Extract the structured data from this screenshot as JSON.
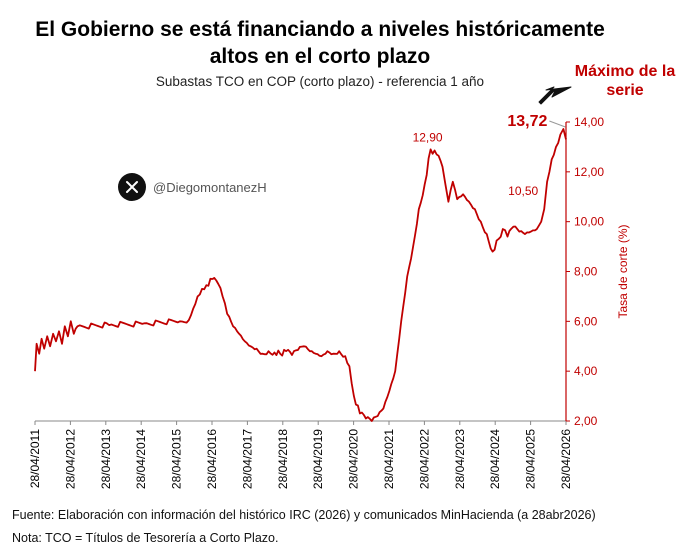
{
  "title_line1": "El Gobierno se está financiando a niveles históricamente",
  "title_line2": "altos en el corto plazo",
  "subtitle": "Subastas TCO en COP (corto plazo) - referencia 1 año",
  "annotation_line1": "Máximo de la",
  "annotation_line2": "serie",
  "handle": "@DiegomontanezH",
  "handle_icon": "x-logo-icon",
  "source": "Fuente: Elaboración con información del histórico IRC (2026) y comunicados MinHacienda (a 28abr2026)",
  "note": "Nota: TCO = Títulos de Tesorería a Corto Plazo.",
  "colors": {
    "series": "#c00000",
    "axis": "#c00000",
    "text": "#000000"
  },
  "chart_data": {
    "type": "line",
    "ylabel": "Tasa de corte (%)",
    "ylim": [
      2,
      14
    ],
    "y_ticks": [
      "2,00",
      "4,00",
      "6,00",
      "8,00",
      "10,00",
      "12,00",
      "14,00"
    ],
    "y_axis_position": "right",
    "x_range": [
      "2011-04-28",
      "2026-04-28"
    ],
    "x_tick_labels": [
      "28/04/2011",
      "28/04/2012",
      "28/04/2013",
      "28/04/2014",
      "28/04/2015",
      "28/04/2016",
      "28/04/2017",
      "28/04/2018",
      "28/04/2019",
      "28/04/2020",
      "28/04/2021",
      "28/04/2022",
      "28/04/2023",
      "28/04/2024",
      "28/04/2025",
      "28/04/2026"
    ],
    "grid": false,
    "legend": "none",
    "series": [
      {
        "x": [
          "2011-04-28",
          "2011-05-15",
          "2011-06-10",
          "2011-07-05",
          "2011-08-01",
          "2011-09-01",
          "2011-10-01",
          "2011-11-01",
          "2011-12-01",
          "2012-01-01",
          "2012-02-01",
          "2012-03-01",
          "2012-04-01",
          "2012-05-01",
          "2012-06-01",
          "2012-07-10",
          "2013-06-01",
          "2014-06-01",
          "2015-06-01",
          "2015-09-01",
          "2015-10-15",
          "2015-12-01",
          "2016-01-15",
          "2016-03-01",
          "2016-05-01",
          "2016-07-01",
          "2016-08-15",
          "2016-10-01",
          "2016-12-01",
          "2017-02-01",
          "2017-04-01",
          "2017-06-01",
          "2017-08-01",
          "2017-10-01",
          "2017-12-01",
          "2018-02-01",
          "2018-04-01",
          "2018-06-01",
          "2018-08-01",
          "2018-10-01",
          "2018-12-01",
          "2019-02-01",
          "2019-04-01",
          "2019-06-01",
          "2019-08-01",
          "2019-10-01",
          "2019-12-01",
          "2020-02-01",
          "2020-03-15",
          "2020-05-01",
          "2020-07-01",
          "2020-09-01",
          "2020-11-01",
          "2021-01-01",
          "2021-03-01",
          "2021-05-01",
          "2021-07-01",
          "2021-09-01",
          "2021-11-01",
          "2022-01-01",
          "2022-03-01",
          "2022-05-01",
          "2022-07-01",
          "2022-09-01",
          "2022-11-01",
          "2022-12-01",
          "2023-01-01",
          "2023-02-15",
          "2023-04-01",
          "2023-06-01",
          "2023-08-01",
          "2023-10-01",
          "2023-12-01",
          "2024-02-01",
          "2024-04-01",
          "2024-06-01",
          "2024-07-15",
          "2024-09-01",
          "2024-11-01",
          "2025-01-01",
          "2025-03-01",
          "2025-05-01",
          "2025-07-01",
          "2025-08-15",
          "2025-09-15",
          "2025-10-15",
          "2025-12-01",
          "2026-01-15",
          "2026-03-01",
          "2026-04-01",
          "2026-04-28"
        ],
        "y": [
          4.0,
          5.1,
          4.7,
          5.3,
          4.9,
          5.4,
          5.0,
          5.5,
          5.2,
          5.6,
          5.1,
          5.8,
          5.4,
          6.0,
          5.5,
          5.8,
          5.85,
          5.92,
          6.0,
          6.05,
          6.5,
          7.0,
          7.3,
          7.45,
          7.7,
          7.5,
          7.0,
          6.3,
          5.8,
          5.5,
          5.2,
          5.0,
          4.9,
          4.7,
          4.8,
          4.75,
          4.7,
          4.8,
          4.65,
          4.85,
          5.0,
          4.8,
          4.7,
          4.6,
          4.8,
          4.7,
          4.8,
          4.6,
          4.2,
          3.0,
          2.3,
          2.1,
          2.0,
          2.2,
          2.5,
          3.2,
          4.0,
          6.0,
          7.8,
          9.0,
          10.5,
          11.5,
          12.9,
          12.7,
          12.2,
          11.5,
          10.8,
          11.6,
          10.9,
          11.1,
          10.8,
          10.5,
          10.0,
          9.5,
          8.8,
          9.3,
          9.7,
          9.4,
          9.8,
          9.6,
          9.5,
          9.6,
          9.7,
          10.0,
          10.5,
          11.6,
          12.5,
          13.0,
          13.5,
          13.72,
          13.3
        ]
      }
    ],
    "data_labels": [
      {
        "text": "12,90",
        "x": "2022-07-01",
        "y": 12.9
      },
      {
        "text": "10,50",
        "x": "2025-09-15",
        "y": 10.5
      },
      {
        "text": "13,72",
        "x": "2026-04-01",
        "y": 13.72
      }
    ]
  }
}
